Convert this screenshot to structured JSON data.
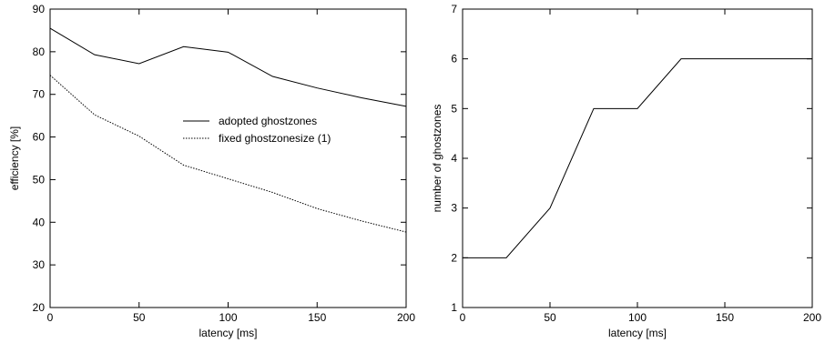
{
  "chart_data": [
    {
      "type": "line",
      "xlabel": "latency [ms]",
      "ylabel": "efficiency [%]",
      "xlim": [
        0,
        200
      ],
      "ylim": [
        20,
        90
      ],
      "xticks": [
        0,
        50,
        100,
        150,
        200
      ],
      "yticks": [
        20,
        30,
        40,
        50,
        60,
        70,
        80,
        90
      ],
      "grid": false,
      "legend_position": "center-right",
      "series": [
        {
          "name": "adopted ghostzones",
          "style": "solid",
          "x": [
            0,
            25,
            50,
            75,
            100,
            125,
            150,
            175,
            200
          ],
          "y": [
            85.5,
            79.3,
            77.2,
            81.2,
            79.9,
            74.2,
            71.5,
            69.2,
            67.2
          ]
        },
        {
          "name": "fixed ghostzonesize (1)",
          "style": "dotted",
          "x": [
            0,
            25,
            50,
            75,
            100,
            125,
            150,
            175,
            200
          ],
          "y": [
            74.5,
            65.2,
            60.2,
            53.4,
            50.2,
            47.0,
            43.2,
            40.3,
            37.7
          ]
        }
      ]
    },
    {
      "type": "line",
      "xlabel": "latency [ms]",
      "ylabel": "number of ghostzones",
      "xlim": [
        0,
        200
      ],
      "ylim": [
        1,
        7
      ],
      "xticks": [
        0,
        50,
        100,
        150,
        200
      ],
      "yticks": [
        1,
        2,
        3,
        4,
        5,
        6,
        7
      ],
      "grid": false,
      "series": [
        {
          "style": "solid",
          "x": [
            0,
            25,
            50,
            75,
            100,
            125,
            150,
            175,
            200
          ],
          "y": [
            2,
            2,
            3,
            5,
            5,
            6,
            6,
            6,
            6
          ]
        }
      ]
    }
  ]
}
